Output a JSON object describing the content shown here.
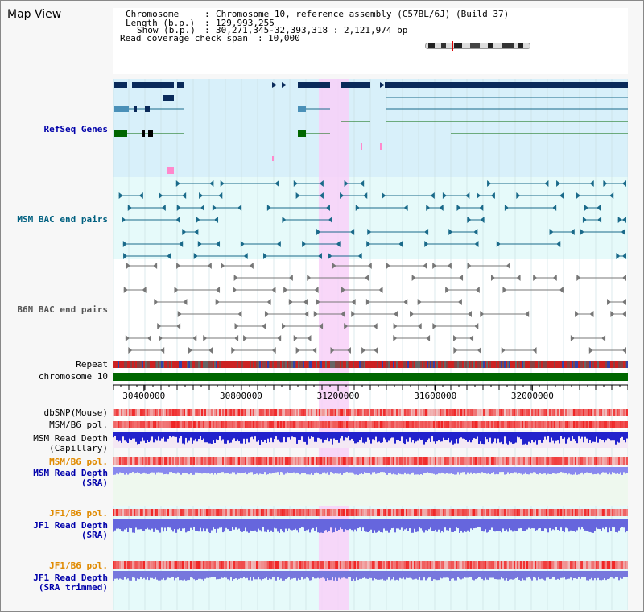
{
  "title": "Map View",
  "header": {
    "chromosome_key": "Chromosome",
    "chromosome_val": "Chromosome 10, reference assembly (C57BL/6J) (Build 37)",
    "length_key": "Length (b.p.)",
    "length_val": "129,993,255",
    "show_key": "Show (b.p.)",
    "show_val": "30,271,345-32,393,318 : 2,121,974 bp",
    "coverage_key": "Read coverage check span",
    "coverage_val": "10,000"
  },
  "tracks": {
    "refseq": "RefSeq Genes",
    "msm_bac": "MSM BAC end pairs",
    "b6n_bac": "B6N BAC end pairs",
    "repeat": "Repeat",
    "chromosome": "chromosome 10",
    "dbsnp": "dbSNP(Mouse)",
    "msm_b6_pol_1": "MSM/B6 pol.",
    "msm_depth_cap_1": "MSM Read Depth",
    "msm_depth_cap_2": "(Capillary)",
    "msm_b6_pol_2": "MSM/B6 pol.",
    "msm_depth_sra_1": "MSM Read Depth",
    "msm_depth_sra_2": "(SRA)",
    "jf1_b6_pol_1": "JF1/B6 pol.",
    "jf1_depth_sra_1": "JF1 Read Depth",
    "jf1_depth_sra_2": "(SRA)",
    "jf1_b6_pol_2": "JF1/B6 pol.",
    "jf1_depth_trim_1": "JF1 Read Depth",
    "jf1_depth_trim_2": "(SRA trimmed)"
  },
  "axis": {
    "ticks": [
      "30400000",
      "30800000",
      "31200000",
      "31600000",
      "32000000"
    ],
    "range": [
      30271345,
      32393318
    ],
    "highlight": [
      31120000,
      31245000
    ]
  },
  "colors": {
    "refseq_bg": "#d8f0fa",
    "bac_bg": "#e6fafa",
    "highlight": "#f8d8f8",
    "navy": "#0a2a5a",
    "teal": "#1a6a8a",
    "green": "#006600",
    "depth": "#3333dd",
    "pol_red": "#ee3333"
  }
}
